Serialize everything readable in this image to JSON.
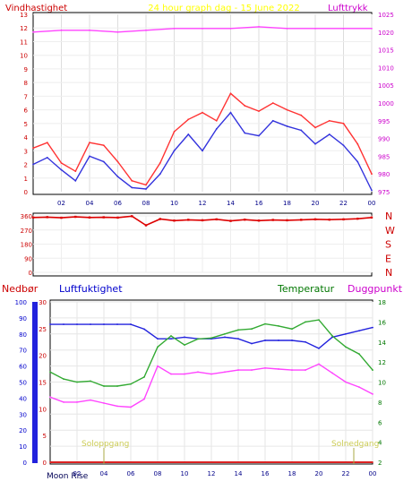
{
  "chart_data": [
    {
      "type": "line",
      "title": "24 hour graph dag - 15 June 2022",
      "left_axis_label": "Vindhastighet",
      "right_axis_label": "Lufttrykk",
      "x_ticks": [
        "02",
        "04",
        "06",
        "08",
        "10",
        "12",
        "14",
        "16",
        "18",
        "20",
        "22",
        "00"
      ],
      "y_left_ticks": [
        "0",
        "1",
        "2",
        "3",
        "4",
        "5",
        "6",
        "7",
        "8",
        "9",
        "10",
        "11",
        "12",
        "13"
      ],
      "y_right_ticks": [
        "975",
        "980",
        "985",
        "990",
        "995",
        "1000",
        "1005",
        "1010",
        "1015",
        "1020",
        "1025"
      ],
      "ylim_left": [
        0,
        13
      ],
      "ylim_right": [
        975,
        1025
      ],
      "colors": {
        "gust": "#ff3333",
        "avg": "#3333dd",
        "pressure": "#ff44ff",
        "title": "#ffff00",
        "left_label": "#cc0000",
        "right_label": "#cc00cc"
      },
      "series": [
        {
          "role": "gust",
          "x": [
            0,
            1,
            2,
            3,
            4,
            5,
            6,
            7,
            8,
            9,
            10,
            11,
            12,
            13,
            14,
            15,
            16,
            17,
            18,
            19,
            20,
            21,
            22,
            23,
            24
          ],
          "values": [
            3.2,
            3.6,
            2.1,
            1.5,
            3.6,
            3.4,
            2.2,
            0.8,
            0.5,
            2.1,
            4.4,
            5.3,
            5.8,
            5.2,
            7.2,
            6.3,
            5.9,
            6.5,
            6.0,
            5.6,
            4.7,
            5.2,
            5.0,
            3.5,
            1.3
          ]
        },
        {
          "role": "average",
          "x": [
            0,
            1,
            2,
            3,
            4,
            5,
            6,
            7,
            8,
            9,
            10,
            11,
            12,
            13,
            14,
            15,
            16,
            17,
            18,
            19,
            20,
            21,
            22,
            23,
            24
          ],
          "values": [
            2.0,
            2.5,
            1.6,
            0.8,
            2.6,
            2.2,
            1.1,
            0.3,
            0.2,
            1.3,
            3.0,
            4.2,
            3.0,
            4.6,
            5.8,
            4.3,
            4.1,
            5.2,
            4.8,
            4.5,
            3.5,
            4.2,
            3.4,
            2.2,
            0.1
          ]
        },
        {
          "role": "pressure",
          "x": [
            0,
            2,
            4,
            6,
            8,
            10,
            12,
            14,
            16,
            18,
            20,
            22,
            24
          ],
          "values": [
            1020,
            1020.5,
            1020.5,
            1020,
            1020.5,
            1021,
            1021,
            1021,
            1021.5,
            1021,
            1021,
            1021,
            1021
          ]
        }
      ]
    },
    {
      "type": "scatter",
      "title": "",
      "y_left_ticks": [
        "360",
        "270",
        "180",
        "90",
        "0"
      ],
      "ylim": [
        0,
        360
      ],
      "compass_labels": [
        "N",
        "W",
        "S",
        "E",
        "N"
      ],
      "colors": {
        "direction": "#dd0000",
        "compass": "#cc0000"
      },
      "x": [
        0,
        1,
        2,
        3,
        4,
        5,
        6,
        7,
        8,
        9,
        10,
        11,
        12,
        13,
        14,
        15,
        16,
        17,
        18,
        19,
        20,
        21,
        22,
        23,
        24
      ],
      "values": [
        350,
        352,
        348,
        354,
        350,
        351,
        349,
        358,
        300,
        340,
        330,
        335,
        332,
        338,
        328,
        336,
        330,
        334,
        332,
        335,
        338,
        336,
        338,
        342,
        350
      ]
    },
    {
      "type": "line",
      "labels": {
        "rain": "Nedbør",
        "humidity": "Luftfuktighet",
        "temperature": "Temperatur",
        "dewpoint": "Duggpunkt"
      },
      "label_colors": {
        "rain": "#cc0000",
        "humidity": "#0000cc",
        "temperature": "#007700",
        "dewpoint": "#cc00cc"
      },
      "y_humidity_ticks": [
        "0",
        "10",
        "20",
        "30",
        "40",
        "50",
        "60",
        "70",
        "80",
        "90",
        "100"
      ],
      "y_rain_ticks": [
        "0",
        "5",
        "10",
        "15",
        "20",
        "25",
        "30"
      ],
      "y_temp_ticks": [
        "2",
        "4",
        "6",
        "8",
        "10",
        "12",
        "14",
        "16",
        "18"
      ],
      "x_ticks": [
        "02",
        "04",
        "06",
        "08",
        "10",
        "12",
        "14",
        "16",
        "18",
        "20",
        "22",
        "00"
      ],
      "footer": {
        "sunrise": "Soloppgang",
        "sunset": "Solnedgang",
        "moonrise": "Moon Rise"
      },
      "ylim_humidity": [
        0,
        100
      ],
      "ylim_temp": [
        2,
        18
      ],
      "series": [
        {
          "name": "Luftfuktighet",
          "color": "#2222dd",
          "x": [
            0,
            1,
            2,
            3,
            4,
            5,
            6,
            7,
            8,
            9,
            10,
            11,
            12,
            13,
            14,
            15,
            16,
            17,
            18,
            19,
            20,
            21,
            22,
            23,
            24
          ],
          "values": [
            86,
            86,
            86,
            86,
            86,
            86,
            86,
            83,
            77,
            77,
            78,
            77,
            77,
            78,
            77,
            74,
            76,
            76,
            76,
            75,
            71,
            78,
            80,
            82,
            84
          ]
        },
        {
          "name": "Temperatur",
          "color": "#33aa33",
          "x": [
            0,
            1,
            2,
            3,
            4,
            5,
            6,
            7,
            8,
            9,
            10,
            11,
            12,
            13,
            14,
            15,
            16,
            17,
            18,
            19,
            20,
            21,
            22,
            23,
            24
          ],
          "values": [
            11.0,
            10.3,
            10.0,
            10.1,
            9.6,
            9.6,
            9.8,
            10.5,
            13.5,
            14.6,
            13.7,
            14.3,
            14.4,
            14.8,
            15.2,
            15.3,
            15.8,
            15.6,
            15.3,
            16.0,
            16.2,
            14.6,
            13.5,
            12.8,
            11.2
          ]
        },
        {
          "name": "Duggpunkt",
          "color": "#ff44ff",
          "x": [
            0,
            1,
            2,
            3,
            4,
            5,
            6,
            7,
            8,
            9,
            10,
            11,
            12,
            13,
            14,
            15,
            16,
            17,
            18,
            19,
            20,
            21,
            22,
            23,
            24
          ],
          "values": [
            8.5,
            8.0,
            8.0,
            8.2,
            7.9,
            7.6,
            7.5,
            8.3,
            11.6,
            10.8,
            10.8,
            11.0,
            10.8,
            11.0,
            11.2,
            11.2,
            11.4,
            11.3,
            11.2,
            11.2,
            11.8,
            10.9,
            10.0,
            9.5,
            8.8
          ]
        },
        {
          "name": "Nedbør",
          "color": "#dd2222",
          "x": [
            0,
            24
          ],
          "values": [
            0,
            0
          ]
        }
      ]
    }
  ]
}
